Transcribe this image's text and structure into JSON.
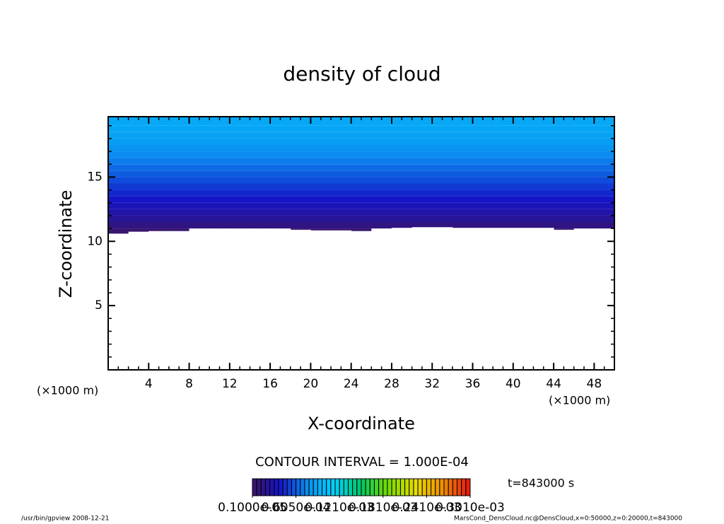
{
  "chart_data": {
    "type": "contour",
    "title": "density of cloud",
    "x_label": "X-coordinate",
    "y_label": "Z-coordinate",
    "unit_label": "(×1000 m)",
    "contour_note": "CONTOUR INTERVAL = 1.000E-04",
    "time_note": "t=843000 s",
    "footer_left": "/usr/bin/gpview   2008-12-21",
    "footer_right": "MarsCond_DensCloud.nc@DensCloud,x=0:50000,z=0:20000,t=843000",
    "xlim": [
      0,
      50
    ],
    "ylim": [
      0,
      19.7
    ],
    "xticks": [
      4,
      8,
      12,
      16,
      20,
      24,
      28,
      32,
      36,
      40,
      44,
      48
    ],
    "yticks": [
      5,
      10,
      15
    ],
    "z": [
      10.5,
      11,
      11.5,
      12,
      12.5,
      13,
      13.5,
      14,
      14.5,
      15,
      15.5,
      16,
      16.5,
      17,
      17.5,
      18,
      18.5,
      19,
      19.7
    ],
    "values": [
      5e-06,
      1.2e-05,
      2e-05,
      2.6e-05,
      3.2e-05,
      3.8e-05,
      4.4e-05,
      5e-05,
      5.6e-05,
      6.1e-05,
      6.6e-05,
      7.1e-05,
      7.6e-05,
      8.1e-05,
      8.5e-05,
      8.8e-05,
      9e-05,
      9.1e-05
    ],
    "x_edges": [
      0,
      2,
      4,
      6,
      8,
      10,
      12,
      14,
      16,
      18,
      20,
      22,
      24,
      26,
      28,
      30,
      32,
      34,
      36,
      38,
      40,
      42,
      44,
      46,
      48,
      50
    ],
    "cloud_base": [
      10.6,
      10.75,
      10.8,
      10.8,
      11.0,
      11.0,
      11.0,
      11.0,
      11.0,
      10.9,
      10.85,
      10.85,
      10.8,
      11.0,
      11.05,
      11.1,
      11.1,
      11.05,
      11.05,
      11.05,
      11.05,
      11.05,
      10.9,
      11.0,
      11.0
    ],
    "clim": [
      1e-06,
      0.000301
    ],
    "colormap": [
      "#3c1464",
      "#1414c8",
      "#0a8cf0",
      "#00d2ff",
      "#00c864",
      "#78dc00",
      "#e6dc00",
      "#f08c00",
      "#e61414"
    ],
    "colorbar_ticks": [
      {
        "value": 1e-06,
        "label": "0.1000e-05"
      },
      {
        "value": 6.1e-05,
        "label": "0.6050e-04"
      },
      {
        "value": 0.000121,
        "label": "0.1210e-03"
      },
      {
        "value": 0.000181,
        "label": "0.1810e-03"
      },
      {
        "value": 0.000241,
        "label": "0.2410e-03"
      },
      {
        "value": 0.000301,
        "label": "0.3010e-03"
      }
    ]
  }
}
